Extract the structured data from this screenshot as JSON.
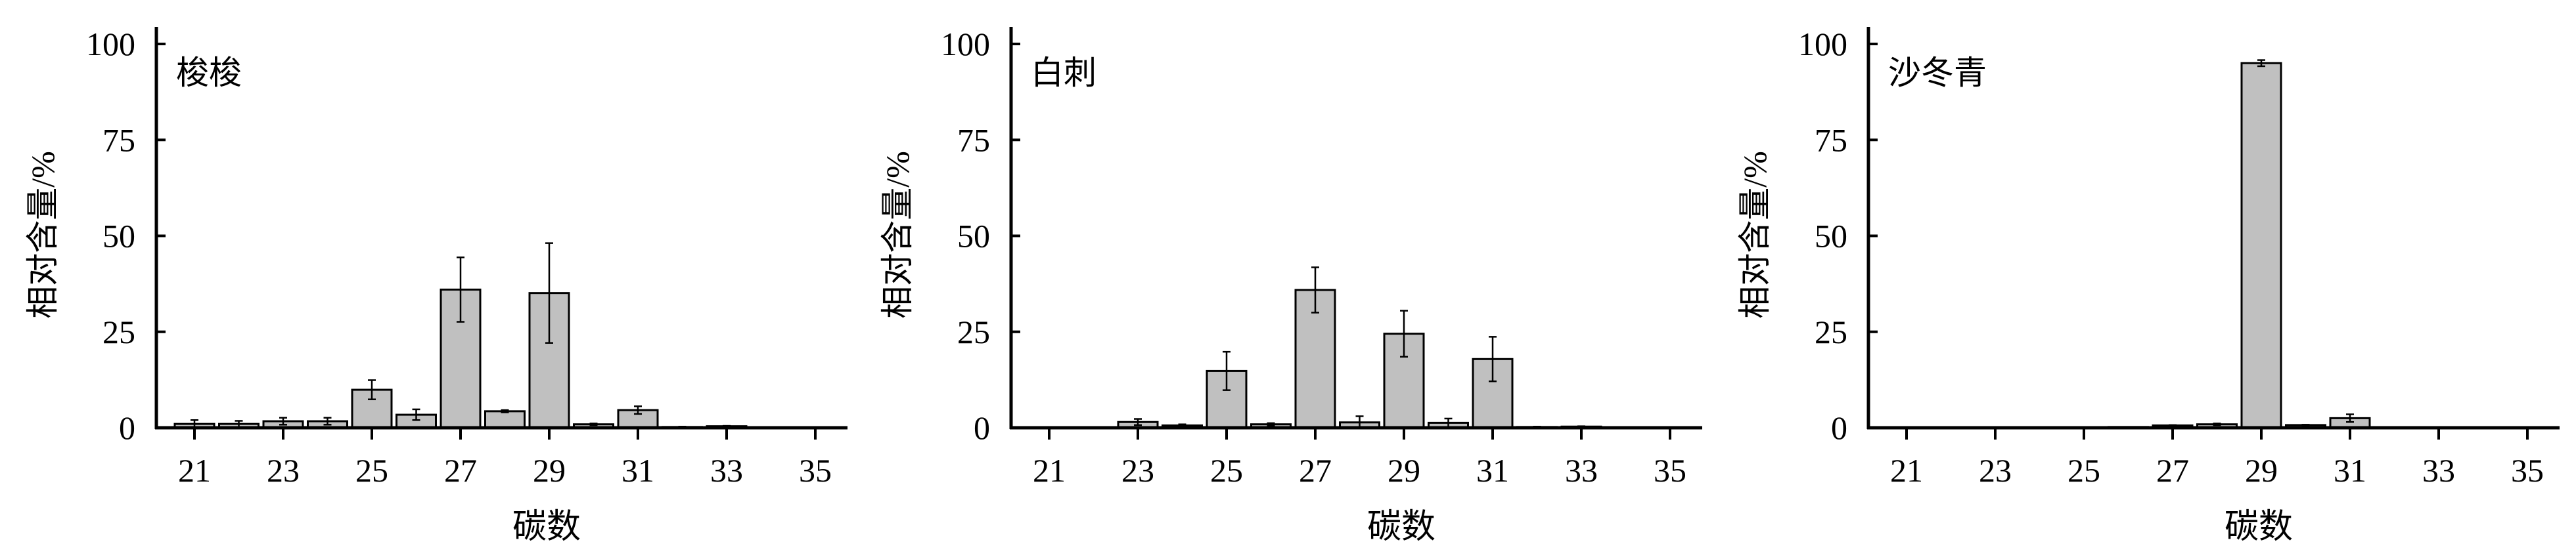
{
  "chart_data": [
    {
      "type": "bar",
      "title": "梭梭",
      "xlabel": "碳数",
      "ylabel": "相对含量/%",
      "ylim": [
        0,
        100
      ],
      "yticks": [
        "0",
        "25",
        "50",
        "75",
        "100"
      ],
      "xticks": [
        "21",
        "23",
        "25",
        "27",
        "29",
        "31",
        "33",
        "35"
      ],
      "categories": [
        21,
        22,
        23,
        24,
        25,
        26,
        27,
        28,
        29,
        30,
        31,
        32,
        33,
        34,
        35
      ],
      "values": [
        1.0,
        1.0,
        1.7,
        1.7,
        9.9,
        3.4,
        36.0,
        4.3,
        35.1,
        0.9,
        4.6,
        0.2,
        0.4,
        0,
        0
      ],
      "errors": [
        1.0,
        0.8,
        0.9,
        0.9,
        2.5,
        1.4,
        8.4,
        0.3,
        13.0,
        0.2,
        1.0,
        0.1,
        0.1,
        0,
        0
      ],
      "grid": false,
      "bar_color": "#c0c0c0"
    },
    {
      "type": "bar",
      "title": "白刺",
      "xlabel": "碳数",
      "ylabel": "相对含量/%",
      "ylim": [
        0,
        100
      ],
      "yticks": [
        "0",
        "25",
        "50",
        "75",
        "100"
      ],
      "xticks": [
        "21",
        "23",
        "25",
        "27",
        "29",
        "31",
        "33",
        "35"
      ],
      "categories": [
        21,
        22,
        23,
        24,
        25,
        26,
        27,
        28,
        29,
        30,
        31,
        32,
        33,
        34,
        35
      ],
      "values": [
        0.1,
        0.1,
        1.5,
        0.6,
        14.8,
        0.9,
        35.9,
        1.4,
        24.5,
        1.3,
        17.9,
        0.2,
        0.3,
        0,
        0
      ],
      "errors": [
        0,
        0,
        0.8,
        0.3,
        5.0,
        0.3,
        5.9,
        1.6,
        6.0,
        1.1,
        5.8,
        0.1,
        0.1,
        0,
        0
      ],
      "grid": false,
      "bar_color": "#c0c0c0"
    },
    {
      "type": "bar",
      "title": "沙冬青",
      "xlabel": "碳数",
      "ylabel": "相对含量/%",
      "ylim": [
        0,
        100
      ],
      "yticks": [
        "0",
        "25",
        "50",
        "75",
        "100"
      ],
      "xticks": [
        "21",
        "23",
        "25",
        "27",
        "29",
        "31",
        "33",
        "35"
      ],
      "categories": [
        21,
        22,
        23,
        24,
        25,
        26,
        27,
        28,
        29,
        30,
        31,
        32,
        33,
        34,
        35
      ],
      "values": [
        0,
        0,
        0.1,
        0,
        0.1,
        0.2,
        0.6,
        0.9,
        95.0,
        0.7,
        2.5,
        0,
        0.1,
        0,
        0
      ],
      "errors": [
        0,
        0,
        0,
        0,
        0,
        0,
        0.1,
        0.2,
        0.8,
        0.1,
        1.0,
        0,
        0,
        0,
        0
      ],
      "grid": false,
      "bar_color": "#c0c0c0"
    }
  ]
}
